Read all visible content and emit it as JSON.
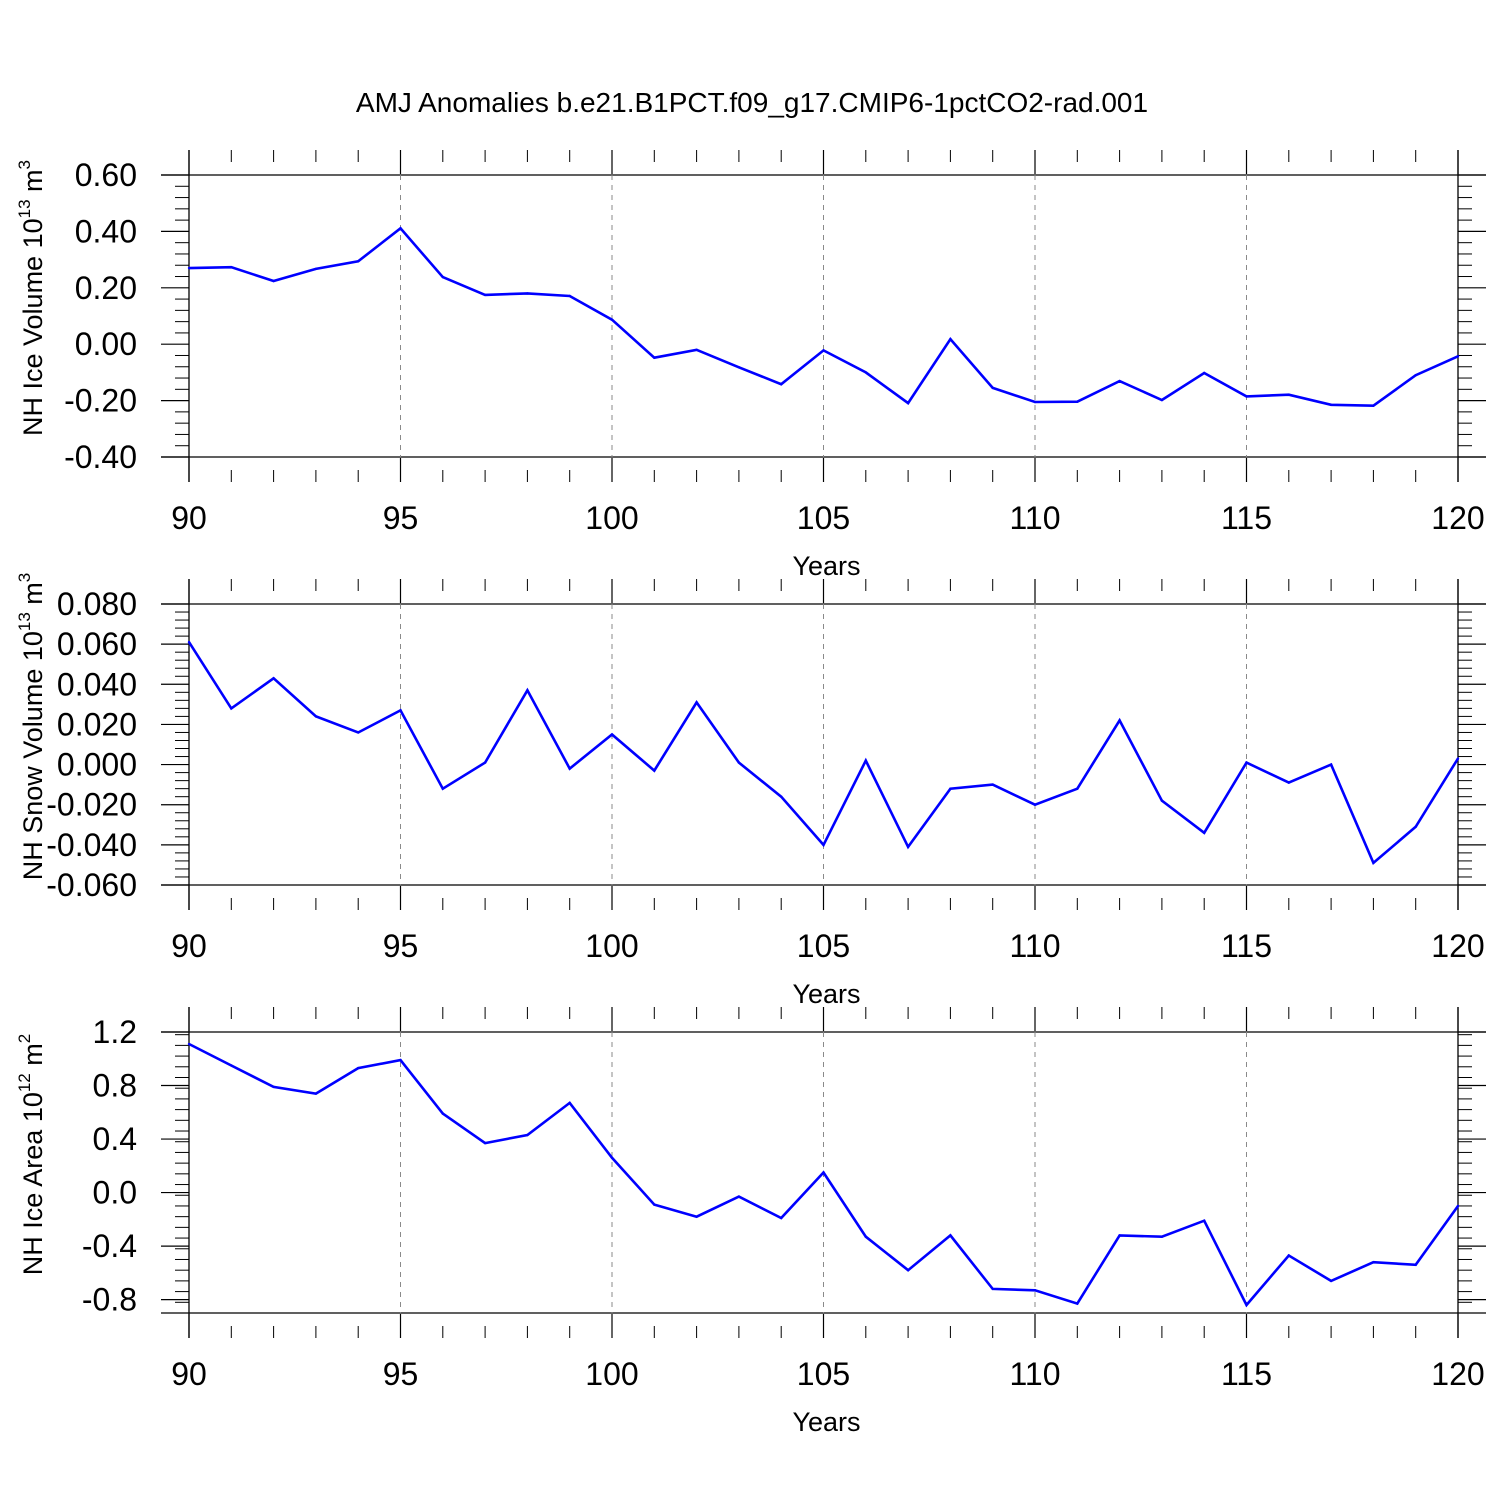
{
  "title": "AMJ Anomalies b.e21.B1PCT.f09_g17.CMIP6-1pctCO2-rad.001",
  "line_color": "#0000ff",
  "chart_data": [
    {
      "type": "line",
      "ylabel": {
        "prefix": "NH Ice Volume 10",
        "exponent": "13",
        "unit": " m",
        "unit_exponent": "3"
      },
      "xlabel": "Years",
      "xlim": [
        90,
        120
      ],
      "ylim": [
        -0.4,
        0.6
      ],
      "yticks": [
        -0.4,
        -0.2,
        0.0,
        0.2,
        0.4,
        0.6
      ],
      "ytick_labels": [
        "-0.40",
        "-0.20",
        "0.00",
        "0.20",
        "0.40",
        "0.60"
      ],
      "xticks": [
        90,
        95,
        100,
        105,
        110,
        115,
        120
      ],
      "xtick_labels": [
        "90",
        "95",
        "100",
        "105",
        "110",
        "115",
        "120"
      ],
      "x": [
        90,
        91,
        92,
        93,
        94,
        95,
        96,
        97,
        98,
        99,
        100,
        101,
        102,
        103,
        104,
        105,
        106,
        107,
        108,
        109,
        110,
        111,
        112,
        113,
        114,
        115,
        116,
        117,
        118,
        119,
        120
      ],
      "y": [
        0.27,
        0.273,
        0.224,
        0.267,
        0.294,
        0.411,
        0.238,
        0.175,
        0.18,
        0.171,
        0.087,
        -0.048,
        -0.02,
        -0.082,
        -0.142,
        -0.022,
        -0.1,
        -0.209,
        0.018,
        -0.155,
        -0.205,
        -0.204,
        -0.131,
        -0.198,
        -0.102,
        -0.185,
        -0.179,
        -0.215,
        -0.218,
        -0.11,
        -0.043
      ]
    },
    {
      "type": "line",
      "ylabel": {
        "prefix": "NH Snow Volume 10",
        "exponent": "13",
        "unit": " m",
        "unit_exponent": "3"
      },
      "xlabel": "Years",
      "xlim": [
        90,
        120
      ],
      "ylim": [
        -0.06,
        0.08
      ],
      "yticks": [
        -0.06,
        -0.04,
        -0.02,
        0.0,
        0.02,
        0.04,
        0.06,
        0.08
      ],
      "ytick_labels": [
        "-0.060",
        "-0.040",
        "-0.020",
        "0.000",
        "0.020",
        "0.040",
        "0.060",
        "0.080"
      ],
      "xticks": [
        90,
        95,
        100,
        105,
        110,
        115,
        120
      ],
      "xtick_labels": [
        "90",
        "95",
        "100",
        "105",
        "110",
        "115",
        "120"
      ],
      "x": [
        90,
        91,
        92,
        93,
        94,
        95,
        96,
        97,
        98,
        99,
        100,
        101,
        102,
        103,
        104,
        105,
        106,
        107,
        108,
        109,
        110,
        111,
        112,
        113,
        114,
        115,
        116,
        117,
        118,
        119,
        120
      ],
      "y": [
        0.061,
        0.028,
        0.043,
        0.024,
        0.016,
        0.027,
        -0.012,
        0.001,
        0.037,
        -0.002,
        0.015,
        -0.003,
        0.031,
        0.001,
        -0.016,
        -0.04,
        0.002,
        -0.041,
        -0.012,
        -0.01,
        -0.02,
        -0.012,
        0.022,
        -0.018,
        -0.034,
        0.001,
        -0.009,
        0.0,
        -0.049,
        -0.031,
        0.003
      ]
    },
    {
      "type": "line",
      "ylabel": {
        "prefix": "NH Ice Area 10",
        "exponent": "12",
        "unit": " m",
        "unit_exponent": "2"
      },
      "xlabel": "Years",
      "xlim": [
        90,
        120
      ],
      "ylim": [
        -0.9,
        1.2
      ],
      "yticks": [
        -0.8,
        -0.4,
        0.0,
        0.4,
        0.8,
        1.2
      ],
      "ytick_labels": [
        "-0.8",
        "-0.4",
        "0.0",
        "0.4",
        "0.8",
        "1.2"
      ],
      "xticks": [
        90,
        95,
        100,
        105,
        110,
        115,
        120
      ],
      "xtick_labels": [
        "90",
        "95",
        "100",
        "105",
        "110",
        "115",
        "120"
      ],
      "x": [
        90,
        91,
        92,
        93,
        94,
        95,
        96,
        97,
        98,
        99,
        100,
        101,
        102,
        103,
        104,
        105,
        106,
        107,
        108,
        109,
        110,
        111,
        112,
        113,
        114,
        115,
        116,
        117,
        118,
        119,
        120
      ],
      "y": [
        1.11,
        0.95,
        0.79,
        0.74,
        0.93,
        0.99,
        0.59,
        0.37,
        0.43,
        0.67,
        0.26,
        -0.09,
        -0.18,
        -0.03,
        -0.19,
        0.15,
        -0.33,
        -0.58,
        -0.32,
        -0.72,
        -0.73,
        -0.83,
        -0.32,
        -0.33,
        -0.21,
        -0.84,
        -0.47,
        -0.66,
        -0.52,
        -0.54,
        -0.1
      ]
    }
  ]
}
